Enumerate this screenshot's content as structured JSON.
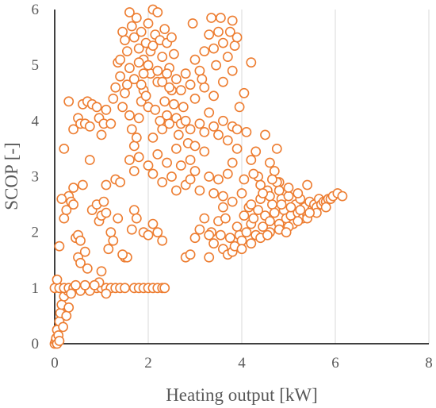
{
  "chart_data": {
    "type": "scatter",
    "title": "",
    "xlabel": "Heating output [kW]",
    "ylabel": "SCOP [-]",
    "xlim": [
      0,
      8
    ],
    "ylim": [
      0,
      6
    ],
    "x_ticks": [
      "0",
      "2",
      "4",
      "6",
      "8"
    ],
    "y_ticks": [
      "0",
      "1",
      "2",
      "3",
      "4",
      "5",
      "6"
    ],
    "grid": "vertical",
    "legend": "none",
    "marker": "hollow-circle",
    "color": "#ED7D31",
    "points": [
      [
        0.0,
        0.0
      ],
      [
        0.02,
        0.05
      ],
      [
        0.03,
        0.1
      ],
      [
        0.05,
        0.25
      ],
      [
        0.08,
        0.15
      ],
      [
        0.1,
        0.4
      ],
      [
        0.12,
        0.55
      ],
      [
        0.15,
        0.7
      ],
      [
        0.18,
        0.3
      ],
      [
        0.2,
        0.85
      ],
      [
        0.25,
        0.5
      ],
      [
        0.28,
        0.95
      ],
      [
        0.3,
        0.65
      ],
      [
        0.05,
        0.0
      ],
      [
        0.1,
        0.05
      ],
      [
        0.0,
        1.0
      ],
      [
        0.1,
        1.0
      ],
      [
        0.2,
        1.0
      ],
      [
        0.3,
        1.0
      ],
      [
        0.4,
        1.0
      ],
      [
        0.5,
        1.0
      ],
      [
        0.6,
        1.0
      ],
      [
        0.7,
        1.0
      ],
      [
        0.8,
        1.0
      ],
      [
        0.9,
        1.0
      ],
      [
        1.0,
        1.0
      ],
      [
        1.1,
        1.0
      ],
      [
        1.2,
        1.0
      ],
      [
        1.3,
        1.0
      ],
      [
        1.4,
        1.0
      ],
      [
        1.5,
        1.0
      ],
      [
        1.7,
        1.0
      ],
      [
        1.8,
        1.0
      ],
      [
        1.9,
        1.0
      ],
      [
        2.0,
        1.0
      ],
      [
        2.1,
        1.0
      ],
      [
        2.2,
        1.0
      ],
      [
        2.3,
        1.0
      ],
      [
        2.35,
        1.0
      ],
      [
        0.05,
        1.15
      ],
      [
        0.35,
        0.9
      ],
      [
        0.55,
        0.95
      ],
      [
        0.75,
        0.95
      ],
      [
        0.95,
        1.1
      ],
      [
        1.0,
        1.3
      ],
      [
        1.1,
        0.9
      ],
      [
        0.45,
        1.05
      ],
      [
        0.65,
        1.05
      ],
      [
        0.85,
        1.05
      ],
      [
        0.1,
        1.75
      ],
      [
        0.2,
        2.25
      ],
      [
        0.25,
        2.4
      ],
      [
        0.3,
        2.65
      ],
      [
        0.35,
        2.55
      ],
      [
        0.4,
        2.8
      ],
      [
        0.45,
        1.9
      ],
      [
        0.5,
        1.55
      ],
      [
        0.55,
        1.45
      ],
      [
        0.6,
        2.85
      ],
      [
        0.65,
        1.65
      ],
      [
        0.7,
        1.35
      ],
      [
        0.8,
        2.4
      ],
      [
        0.9,
        2.5
      ],
      [
        0.95,
        2.2
      ],
      [
        1.0,
        2.3
      ],
      [
        1.05,
        2.55
      ],
      [
        1.1,
        2.35
      ],
      [
        1.2,
        2.0
      ],
      [
        1.25,
        1.85
      ],
      [
        1.3,
        2.95
      ],
      [
        1.35,
        2.25
      ],
      [
        1.4,
        2.9
      ],
      [
        1.5,
        1.55
      ],
      [
        1.55,
        1.55
      ],
      [
        1.65,
        2.05
      ],
      [
        1.7,
        2.4
      ],
      [
        1.75,
        2.25
      ],
      [
        1.9,
        2.0
      ],
      [
        2.0,
        1.95
      ],
      [
        2.1,
        2.15
      ],
      [
        2.2,
        2.0
      ],
      [
        2.3,
        1.85
      ],
      [
        0.15,
        2.6
      ],
      [
        0.5,
        1.95
      ],
      [
        0.55,
        1.85
      ],
      [
        0.4,
        2.5
      ],
      [
        0.75,
        3.3
      ],
      [
        1.15,
        1.7
      ],
      [
        1.45,
        1.6
      ],
      [
        1.1,
        2.85
      ],
      [
        0.3,
        4.35
      ],
      [
        0.2,
        3.5
      ],
      [
        0.4,
        3.85
      ],
      [
        0.5,
        4.05
      ],
      [
        0.55,
        3.95
      ],
      [
        0.6,
        4.3
      ],
      [
        0.65,
        3.95
      ],
      [
        0.7,
        4.35
      ],
      [
        0.75,
        3.9
      ],
      [
        0.8,
        4.3
      ],
      [
        0.9,
        4.25
      ],
      [
        0.95,
        4.05
      ],
      [
        1.0,
        3.75
      ],
      [
        1.05,
        3.95
      ],
      [
        1.1,
        4.2
      ],
      [
        1.2,
        3.95
      ],
      [
        1.25,
        4.4
      ],
      [
        1.3,
        4.6
      ],
      [
        1.35,
        5.05
      ],
      [
        1.4,
        4.8
      ],
      [
        1.45,
        4.25
      ],
      [
        1.5,
        4.5
      ],
      [
        1.55,
        4.65
      ],
      [
        1.6,
        4.1
      ],
      [
        1.65,
        3.85
      ],
      [
        1.7,
        3.55
      ],
      [
        1.75,
        3.7
      ],
      [
        1.8,
        4.05
      ],
      [
        1.85,
        4.35
      ],
      [
        1.9,
        4.55
      ],
      [
        1.95,
        4.45
      ],
      [
        2.0,
        4.25
      ],
      [
        2.05,
        4.85
      ],
      [
        2.1,
        3.7
      ],
      [
        2.15,
        4.2
      ],
      [
        2.2,
        4.7
      ],
      [
        2.25,
        4.0
      ],
      [
        2.3,
        3.85
      ],
      [
        2.35,
        4.35
      ],
      [
        2.4,
        4.1
      ],
      [
        2.45,
        3.95
      ],
      [
        2.5,
        4.55
      ],
      [
        2.55,
        4.3
      ],
      [
        2.6,
        4.05
      ],
      [
        2.65,
        3.75
      ],
      [
        2.7,
        3.95
      ],
      [
        2.75,
        4.25
      ],
      [
        2.8,
        4.0
      ],
      [
        2.85,
        3.6
      ],
      [
        2.9,
        3.85
      ],
      [
        3.0,
        3.55
      ],
      [
        3.1,
        3.95
      ],
      [
        3.2,
        3.8
      ],
      [
        3.3,
        4.15
      ],
      [
        3.4,
        3.9
      ],
      [
        3.5,
        3.75
      ],
      [
        3.6,
        4.0
      ],
      [
        3.7,
        3.65
      ],
      [
        3.8,
        3.9
      ],
      [
        3.9,
        3.85
      ],
      [
        1.6,
        3.3
      ],
      [
        1.7,
        3.1
      ],
      [
        1.8,
        3.35
      ],
      [
        2.0,
        3.2
      ],
      [
        2.1,
        3.05
      ],
      [
        2.2,
        3.4
      ],
      [
        2.4,
        3.25
      ],
      [
        2.5,
        3.0
      ],
      [
        2.6,
        3.5
      ],
      [
        2.7,
        3.2
      ],
      [
        2.8,
        2.85
      ],
      [
        2.9,
        3.3
      ],
      [
        3.0,
        3.1
      ],
      [
        3.1,
        2.75
      ],
      [
        3.2,
        3.45
      ],
      [
        3.3,
        3.0
      ],
      [
        3.4,
        2.7
      ],
      [
        3.5,
        2.95
      ],
      [
        3.6,
        2.65
      ],
      [
        3.7,
        3.05
      ],
      [
        3.8,
        3.25
      ],
      [
        3.9,
        3.5
      ],
      [
        2.3,
        2.9
      ],
      [
        2.6,
        2.75
      ],
      [
        2.9,
        2.95
      ],
      [
        1.6,
        5.95
      ],
      [
        1.65,
        5.7
      ],
      [
        1.7,
        5.5
      ],
      [
        1.75,
        5.85
      ],
      [
        1.8,
        5.3
      ],
      [
        1.85,
        5.6
      ],
      [
        1.9,
        5.1
      ],
      [
        1.95,
        5.4
      ],
      [
        2.0,
        5.75
      ],
      [
        2.05,
        5.25
      ],
      [
        2.1,
        6.0
      ],
      [
        2.15,
        5.55
      ],
      [
        2.2,
        5.95
      ],
      [
        2.25,
        5.45
      ],
      [
        2.3,
        5.15
      ],
      [
        2.35,
        5.65
      ],
      [
        2.4,
        5.4
      ],
      [
        2.45,
        4.95
      ],
      [
        2.5,
        5.5
      ],
      [
        2.55,
        5.2
      ],
      [
        1.5,
        5.45
      ],
      [
        1.55,
        5.25
      ],
      [
        1.4,
        5.1
      ],
      [
        1.45,
        5.6
      ],
      [
        1.6,
        4.95
      ],
      [
        1.7,
        4.75
      ],
      [
        1.8,
        5.05
      ],
      [
        1.9,
        4.85
      ],
      [
        2.0,
        5.0
      ],
      [
        2.1,
        5.35
      ],
      [
        2.2,
        4.9
      ],
      [
        2.3,
        4.7
      ],
      [
        2.4,
        4.85
      ],
      [
        2.6,
        4.75
      ],
      [
        2.7,
        4.55
      ],
      [
        2.8,
        4.85
      ],
      [
        2.9,
        4.65
      ],
      [
        3.0,
        5.1
      ],
      [
        3.1,
        4.9
      ],
      [
        3.2,
        5.25
      ],
      [
        3.3,
        5.55
      ],
      [
        3.35,
        5.85
      ],
      [
        3.4,
        5.3
      ],
      [
        3.45,
        5.0
      ],
      [
        3.5,
        5.6
      ],
      [
        3.55,
        5.85
      ],
      [
        3.6,
        5.4
      ],
      [
        3.7,
        5.15
      ],
      [
        3.75,
        5.6
      ],
      [
        3.8,
        5.8
      ],
      [
        3.85,
        5.35
      ],
      [
        3.9,
        5.5
      ],
      [
        4.2,
        5.05
      ],
      [
        3.0,
        4.4
      ],
      [
        3.2,
        4.6
      ],
      [
        3.4,
        4.45
      ],
      [
        3.6,
        4.7
      ],
      [
        3.8,
        4.9
      ],
      [
        3.95,
        4.25
      ],
      [
        4.05,
        4.5
      ],
      [
        4.1,
        3.8
      ],
      [
        4.2,
        3.3
      ],
      [
        4.3,
        3.45
      ],
      [
        4.35,
        3.0
      ],
      [
        4.5,
        3.75
      ],
      [
        4.6,
        3.25
      ],
      [
        4.7,
        3.1
      ],
      [
        4.75,
        3.5
      ],
      [
        4.8,
        2.9
      ],
      [
        2.95,
        5.75
      ],
      [
        1.85,
        4.65
      ],
      [
        2.45,
        4.6
      ],
      [
        3.15,
        4.75
      ],
      [
        2.8,
        1.55
      ],
      [
        2.9,
        1.6
      ],
      [
        3.0,
        1.9
      ],
      [
        3.1,
        2.05
      ],
      [
        3.2,
        2.25
      ],
      [
        3.3,
        1.55
      ],
      [
        3.35,
        2.0
      ],
      [
        3.4,
        1.8
      ],
      [
        3.5,
        2.2
      ],
      [
        3.55,
        1.95
      ],
      [
        3.6,
        1.7
      ],
      [
        3.7,
        1.6
      ],
      [
        3.75,
        1.9
      ],
      [
        3.8,
        1.65
      ],
      [
        3.85,
        1.75
      ],
      [
        3.9,
        2.1
      ],
      [
        3.95,
        1.95
      ],
      [
        4.0,
        1.85
      ],
      [
        4.05,
        2.3
      ],
      [
        4.1,
        2.0
      ],
      [
        4.15,
        2.45
      ],
      [
        4.2,
        2.15
      ],
      [
        4.25,
        2.25
      ],
      [
        4.3,
        1.95
      ],
      [
        4.35,
        2.4
      ],
      [
        4.4,
        2.6
      ],
      [
        4.45,
        2.1
      ],
      [
        4.5,
        2.3
      ],
      [
        4.55,
        2.75
      ],
      [
        4.6,
        2.2
      ],
      [
        4.65,
        2.5
      ],
      [
        4.7,
        2.35
      ],
      [
        4.75,
        2.9
      ],
      [
        4.8,
        2.15
      ],
      [
        4.85,
        2.6
      ],
      [
        4.9,
        2.4
      ],
      [
        4.95,
        2.25
      ],
      [
        5.0,
        2.65
      ],
      [
        5.05,
        2.3
      ],
      [
        5.1,
        2.15
      ],
      [
        5.15,
        2.5
      ],
      [
        5.2,
        2.35
      ],
      [
        5.25,
        2.6
      ],
      [
        5.3,
        2.25
      ],
      [
        5.35,
        2.45
      ],
      [
        5.4,
        2.3
      ],
      [
        5.45,
        2.55
      ],
      [
        5.5,
        2.4
      ],
      [
        5.55,
        2.5
      ],
      [
        5.6,
        2.45
      ],
      [
        5.65,
        2.6
      ],
      [
        5.7,
        2.5
      ],
      [
        5.75,
        2.55
      ],
      [
        5.8,
        2.55
      ],
      [
        5.85,
        2.6
      ],
      [
        5.9,
        2.6
      ],
      [
        5.95,
        2.65
      ],
      [
        6.05,
        2.7
      ],
      [
        6.15,
        2.65
      ],
      [
        4.0,
        1.7
      ],
      [
        4.2,
        1.8
      ],
      [
        4.4,
        1.9
      ],
      [
        4.6,
        2.0
      ],
      [
        4.8,
        2.05
      ],
      [
        5.0,
        2.1
      ],
      [
        5.2,
        2.2
      ],
      [
        5.4,
        2.25
      ],
      [
        5.6,
        2.35
      ],
      [
        5.8,
        2.45
      ],
      [
        3.6,
        2.45
      ],
      [
        3.8,
        2.55
      ],
      [
        4.0,
        2.7
      ],
      [
        4.2,
        2.5
      ],
      [
        4.4,
        2.85
      ],
      [
        4.6,
        2.65
      ],
      [
        4.8,
        2.75
      ],
      [
        5.0,
        2.8
      ],
      [
        5.2,
        2.7
      ],
      [
        5.4,
        2.85
      ],
      [
        4.05,
        2.95
      ],
      [
        4.25,
        3.05
      ],
      [
        4.45,
        2.7
      ],
      [
        4.65,
        2.95
      ],
      [
        4.85,
        2.5
      ],
      [
        5.05,
        2.45
      ],
      [
        5.25,
        2.4
      ],
      [
        5.45,
        2.35
      ],
      [
        3.3,
        1.95
      ],
      [
        3.65,
        2.25
      ],
      [
        4.55,
        1.95
      ],
      [
        4.95,
        2.0
      ]
    ]
  }
}
